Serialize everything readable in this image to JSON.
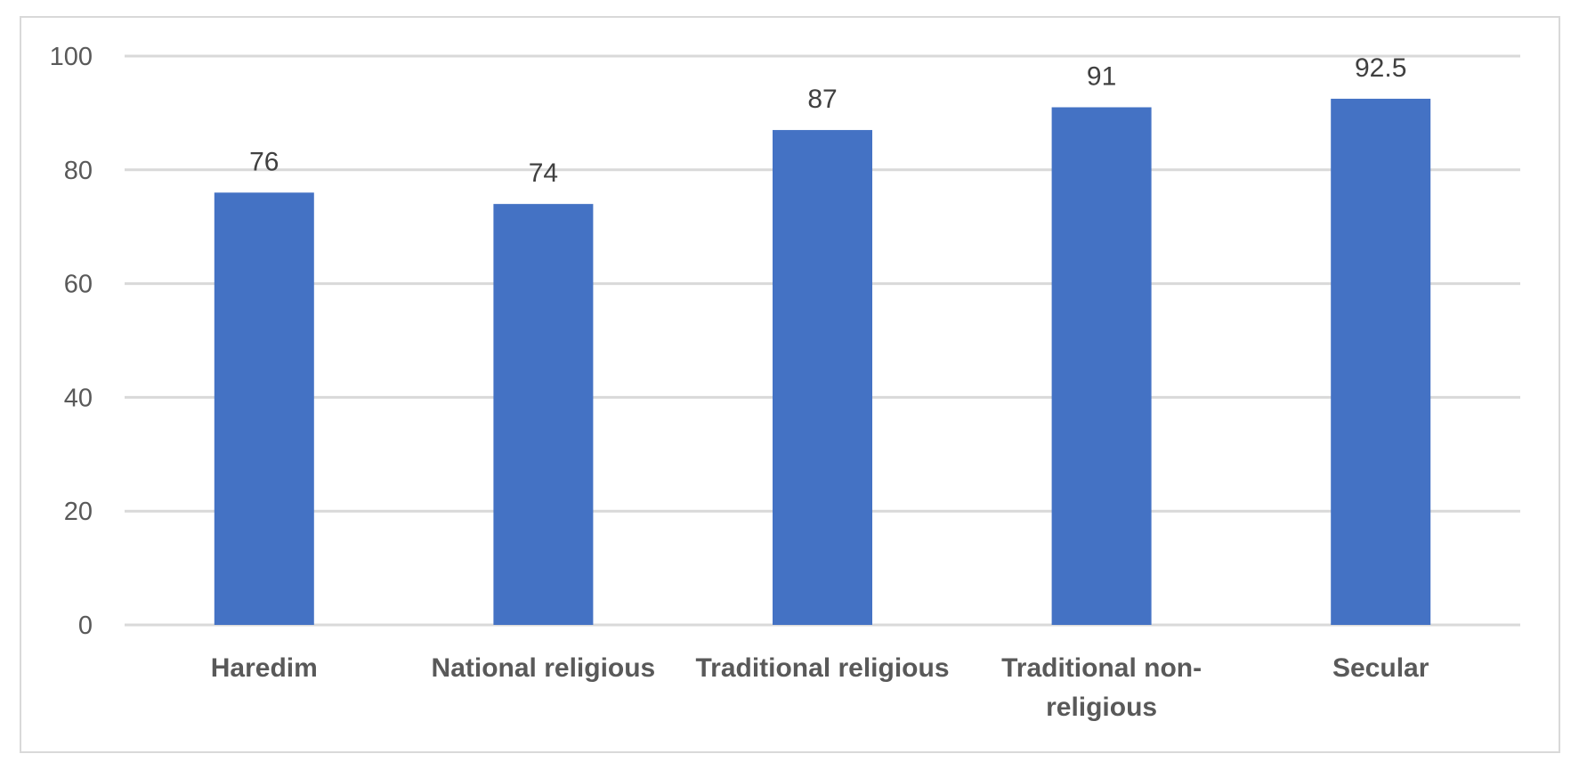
{
  "chart_data": {
    "type": "bar",
    "title": "",
    "xlabel": "",
    "ylabel": "",
    "categories": [
      [
        "Haredim"
      ],
      [
        "National religious"
      ],
      [
        "Traditional religious"
      ],
      [
        "Traditional non-",
        "religious"
      ],
      [
        "Secular"
      ]
    ],
    "values": [
      76,
      74,
      87,
      91,
      92.5
    ],
    "data_labels": [
      "76",
      "74",
      "87",
      "91",
      "92.5"
    ],
    "ylim": [
      0,
      100
    ],
    "yticks": [
      0,
      20,
      40,
      60,
      80,
      100
    ],
    "grid": true,
    "legend": "none",
    "colors": {
      "bar": "#4472c4",
      "grid": "#d9d9d9"
    }
  }
}
